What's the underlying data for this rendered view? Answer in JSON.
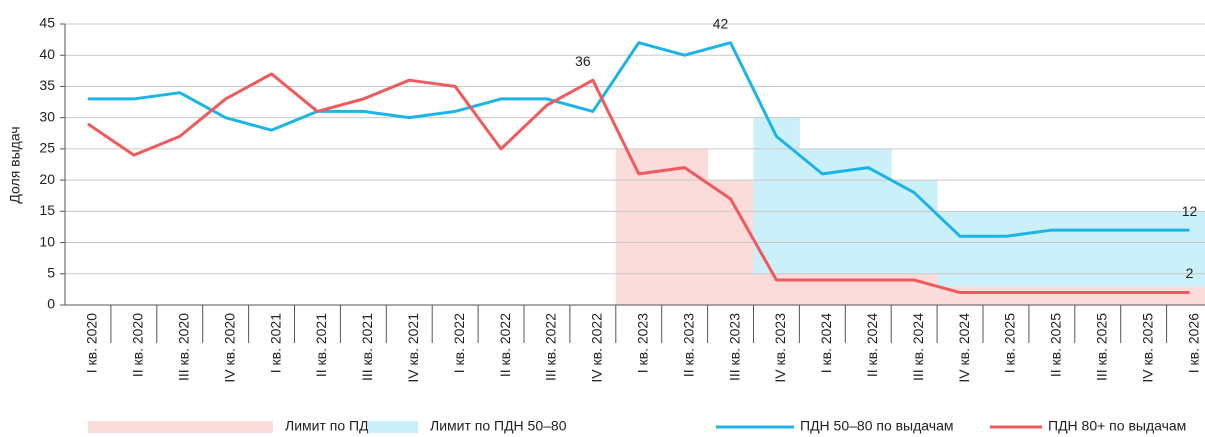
{
  "chart_data": {
    "type": "combo",
    "ylabel": "Доля выдач",
    "categories": [
      "I кв. 2020",
      "II кв. 2020",
      "III кв. 2020",
      "IV кв. 2020",
      "I кв. 2021",
      "II кв. 2021",
      "III кв. 2021",
      "IV кв. 2021",
      "I кв. 2022",
      "II кв. 2022",
      "III кв. 2022",
      "IV кв. 2022",
      "I кв. 2023",
      "II кв. 2023",
      "III кв. 2023",
      "IV кв. 2023",
      "I кв. 2024",
      "II кв. 2024",
      "III кв. 2024",
      "IV кв. 2024",
      "I кв. 2025",
      "II кв. 2025",
      "III кв. 2025",
      "IV кв. 2025",
      "I кв. 2026"
    ],
    "series": [
      {
        "name": "Лимит по ПДН 80+",
        "kind": "bar",
        "color": "#fcdcdb",
        "values": [
          null,
          null,
          null,
          null,
          null,
          null,
          null,
          null,
          null,
          null,
          null,
          null,
          25,
          25,
          20,
          5,
          5,
          5,
          5,
          3,
          3,
          3,
          3,
          3,
          3
        ]
      },
      {
        "name": "Лимит по ПДН 50–80",
        "kind": "bar",
        "color": "#ccf0f9",
        "values": [
          null,
          null,
          null,
          null,
          null,
          null,
          null,
          null,
          null,
          null,
          null,
          null,
          null,
          null,
          null,
          25,
          20,
          20,
          15,
          12,
          12,
          12,
          12,
          12,
          12
        ]
      },
      {
        "name": "ПДН 50–80 по выдачам",
        "kind": "line",
        "color": "#1cb4e6",
        "values": [
          33,
          33,
          34,
          30,
          28,
          31,
          31,
          30,
          31,
          33,
          33,
          31,
          42,
          40,
          42,
          27,
          21,
          22,
          18,
          11,
          11,
          12,
          12,
          12,
          12
        ],
        "label_indices": [
          14,
          24
        ]
      },
      {
        "name": "ПДН 80+ по выдачам",
        "kind": "line",
        "color": "#f05a5c",
        "values": [
          29,
          24,
          27,
          33,
          37,
          31,
          33,
          36,
          35,
          25,
          32,
          36,
          21,
          22,
          17,
          4,
          4,
          4,
          4,
          2,
          2,
          2,
          2,
          2,
          2
        ],
        "label_indices": [
          11,
          24
        ]
      }
    ],
    "stacked": true,
    "ylim": [
      0,
      45
    ],
    "yticks": [
      0,
      5,
      10,
      15,
      20,
      25,
      30,
      35,
      40,
      45
    ],
    "grid": true,
    "legend": "bottom"
  }
}
